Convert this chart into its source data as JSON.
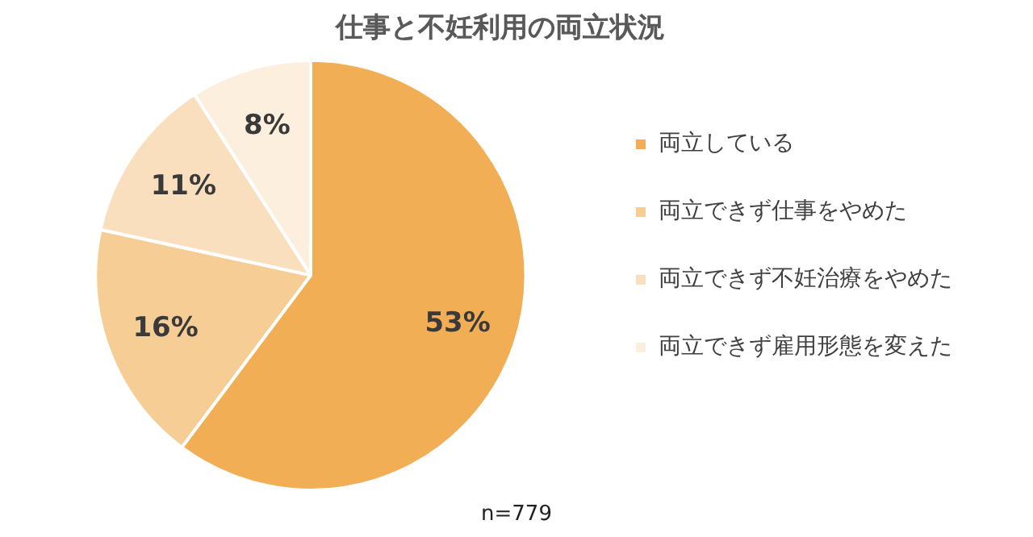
{
  "chart_data": {
    "type": "pie",
    "title": "仕事と不妊利用の両立状況",
    "categories": [
      "両立している",
      "両立できず仕事をやめた",
      "両立できず不妊治療をやめた",
      "両立できず雇用形態を変えた"
    ],
    "values": [
      53,
      16,
      11,
      8
    ],
    "value_labels": [
      "53%",
      "16%",
      "11%",
      "8%"
    ],
    "colors": [
      "#f2ae55",
      "#f6cd94",
      "#f9dfbd",
      "#fcefde"
    ],
    "legend": "right",
    "annotations": [
      "n=779"
    ]
  }
}
